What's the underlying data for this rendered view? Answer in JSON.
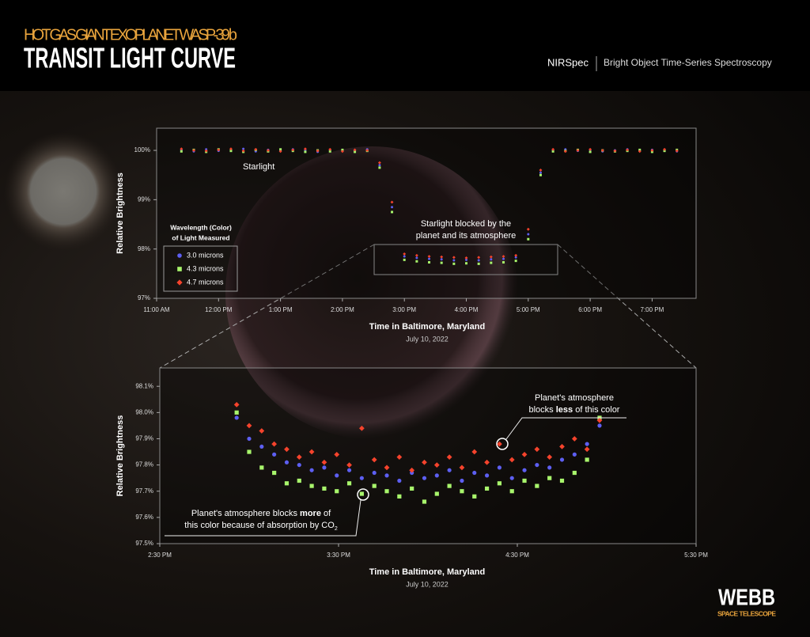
{
  "header": {
    "kicker": "HOT GAS GIANT EXOPLANET WASP-39 b",
    "title": "TRANSIT LIGHT CURVE",
    "instrument": "NIRSpec",
    "mode": "Bright Object Time-Series Spectroscopy"
  },
  "logo": {
    "name": "WEBB",
    "tagline": "SPACE TELESCOPE"
  },
  "chart_data": [
    {
      "type": "scatter",
      "ylabel": "Relative Brightness",
      "xlabel": "Time in Baltimore, Maryland",
      "xsublabel": "July 10, 2022",
      "xlim": [
        11,
        19.71
      ],
      "ylim": [
        97,
        100.45
      ],
      "xticks": [
        {
          "value": 11,
          "label": "11:00 AM"
        },
        {
          "value": 12,
          "label": "12:00 PM"
        },
        {
          "value": 13,
          "label": "1:00 PM"
        },
        {
          "value": 14,
          "label": "2:00 PM"
        },
        {
          "value": 15,
          "label": "3:00 PM"
        },
        {
          "value": 16,
          "label": "4:00 PM"
        },
        {
          "value": 17,
          "label": "5:00 PM"
        },
        {
          "value": 18,
          "label": "6:00 PM"
        },
        {
          "value": 19,
          "label": "7:00 PM"
        }
      ],
      "yticks": [
        {
          "value": 100,
          "label": "100%"
        },
        {
          "value": 99,
          "label": "99%"
        },
        {
          "value": 98,
          "label": "98%"
        },
        {
          "value": 97,
          "label": "97%"
        }
      ],
      "legend_title": [
        "Wavelength (Color)",
        "of Light Measured"
      ],
      "x": [
        11.4,
        11.6,
        11.8,
        12.0,
        12.2,
        12.4,
        12.6,
        12.8,
        13.0,
        13.2,
        13.4,
        13.6,
        13.8,
        14.0,
        14.2,
        14.4,
        14.6,
        14.8,
        15.0,
        15.2,
        15.4,
        15.6,
        15.8,
        16.0,
        16.2,
        16.4,
        16.6,
        16.8,
        17.0,
        17.2,
        17.4,
        17.6,
        17.8,
        18.0,
        18.2,
        18.4,
        18.6,
        18.8,
        19.0,
        19.2,
        19.4
      ],
      "series": [
        {
          "name": "3.0 microns",
          "color": "#5d5ff2",
          "marker": "circle",
          "values": [
            100.01,
            99.98,
            100.02,
            99.99,
            100.0,
            100.03,
            99.98,
            100.01,
            99.99,
            100.02,
            100.0,
            99.97,
            100.01,
            100.0,
            99.99,
            100.02,
            99.7,
            98.85,
            97.85,
            97.82,
            97.8,
            97.79,
            97.77,
            97.78,
            97.77,
            97.79,
            97.8,
            97.83,
            98.3,
            99.55,
            100.0,
            100.02,
            99.99,
            100.01,
            99.98,
            100.0,
            100.02,
            99.99,
            100.01,
            100.0,
            99.98
          ]
        },
        {
          "name": "4.3 microns",
          "color": "#a8f56c",
          "marker": "square",
          "values": [
            99.98,
            100.01,
            99.97,
            100.02,
            99.99,
            99.97,
            100.01,
            99.98,
            100.02,
            99.99,
            99.97,
            100.0,
            99.98,
            100.01,
            99.97,
            99.99,
            99.65,
            98.75,
            97.78,
            97.75,
            97.73,
            97.72,
            97.7,
            97.71,
            97.7,
            97.72,
            97.73,
            97.76,
            98.2,
            99.5,
            99.98,
            99.99,
            100.01,
            99.97,
            100.0,
            99.98,
            99.99,
            100.01,
            99.97,
            99.99,
            100.01
          ]
        },
        {
          "name": "4.7 microns",
          "color": "#f5432c",
          "marker": "diamond",
          "values": [
            100.03,
            100.0,
            99.99,
            100.01,
            100.03,
            99.99,
            100.02,
            100.0,
            99.98,
            100.01,
            100.03,
            99.99,
            100.02,
            99.98,
            100.01,
            100.0,
            99.75,
            98.95,
            97.9,
            97.87,
            97.85,
            97.84,
            97.83,
            97.82,
            97.83,
            97.84,
            97.85,
            97.87,
            98.4,
            99.6,
            100.02,
            99.98,
            100.0,
            100.02,
            100.0,
            99.99,
            100.01,
            99.98,
            100.0,
            100.02,
            99.99
          ]
        }
      ],
      "annotations": [
        {
          "lines": [
            [
              {
                "text": "Starlight"
              }
            ]
          ]
        },
        {
          "lines": [
            [
              {
                "text": "Starlight blocked by the"
              }
            ],
            [
              {
                "text": "planet and its atmosphere"
              }
            ]
          ]
        }
      ]
    },
    {
      "type": "scatter",
      "ylabel": "Relative Brightness",
      "xlabel": "Time in Baltimore, Maryland",
      "xsublabel": "July 10, 2022",
      "xlim": [
        14.5,
        17.5
      ],
      "ylim": [
        97.5,
        98.17
      ],
      "xticks": [
        {
          "value": 14.5,
          "label": "2:30 PM"
        },
        {
          "value": 15.5,
          "label": "3:30 PM"
        },
        {
          "value": 16.5,
          "label": "4:30 PM"
        },
        {
          "value": 17.5,
          "label": "5:30 PM"
        }
      ],
      "yticks": [
        {
          "value": 98.1,
          "label": "98.1%"
        },
        {
          "value": 98.0,
          "label": "98.0%"
        },
        {
          "value": 97.9,
          "label": "97.9%"
        },
        {
          "value": 97.8,
          "label": "97.8%"
        },
        {
          "value": 97.7,
          "label": "97.7%"
        },
        {
          "value": 97.6,
          "label": "97.6%"
        },
        {
          "value": 97.5,
          "label": "97.5%"
        }
      ],
      "x": [
        14.93,
        15.0,
        15.07,
        15.14,
        15.21,
        15.28,
        15.35,
        15.42,
        15.49,
        15.56,
        15.63,
        15.7,
        15.77,
        15.84,
        15.91,
        15.98,
        16.05,
        16.12,
        16.19,
        16.26,
        16.33,
        16.4,
        16.47,
        16.54,
        16.61,
        16.68,
        16.75,
        16.82,
        16.89,
        16.96
      ],
      "series": [
        {
          "color": "#5d5ff2",
          "marker": "circle",
          "values": [
            97.98,
            97.9,
            97.87,
            97.84,
            97.81,
            97.8,
            97.78,
            97.79,
            97.76,
            97.78,
            97.75,
            97.77,
            97.76,
            97.74,
            97.77,
            97.75,
            97.76,
            97.78,
            97.74,
            97.77,
            97.76,
            97.79,
            97.75,
            97.78,
            97.8,
            97.79,
            97.82,
            97.84,
            97.88,
            97.95
          ]
        },
        {
          "color": "#a8f56c",
          "marker": "square",
          "values": [
            98.0,
            97.85,
            97.79,
            97.77,
            97.73,
            97.74,
            97.72,
            97.71,
            97.7,
            97.73,
            97.69,
            97.72,
            97.7,
            97.68,
            97.71,
            97.66,
            97.69,
            97.72,
            97.7,
            97.68,
            97.71,
            97.73,
            97.7,
            97.74,
            97.72,
            97.75,
            97.74,
            97.77,
            97.82,
            97.98
          ]
        },
        {
          "color": "#f5432c",
          "marker": "diamond",
          "values": [
            98.03,
            97.95,
            97.93,
            97.88,
            97.86,
            97.83,
            97.85,
            97.81,
            97.84,
            97.8,
            97.94,
            97.82,
            97.79,
            97.83,
            97.78,
            97.81,
            97.8,
            97.83,
            97.79,
            97.85,
            97.81,
            97.88,
            97.82,
            97.84,
            97.86,
            97.83,
            97.87,
            97.9,
            97.86,
            97.97
          ]
        }
      ],
      "annotations": [
        {
          "lines": [
            [
              {
                "text": "Planet's atmosphere"
              }
            ],
            [
              {
                "text": "blocks "
              },
              {
                "text": "less",
                "bold": true
              },
              {
                "text": " of this color"
              }
            ]
          ]
        },
        {
          "lines": [
            [
              {
                "text": "Planet's atmosphere blocks "
              },
              {
                "text": "more",
                "bold": true
              },
              {
                "text": " of"
              }
            ],
            [
              {
                "text": "this color because of absorption by CO"
              },
              {
                "text": "2",
                "sub": true
              }
            ]
          ]
        }
      ]
    }
  ]
}
